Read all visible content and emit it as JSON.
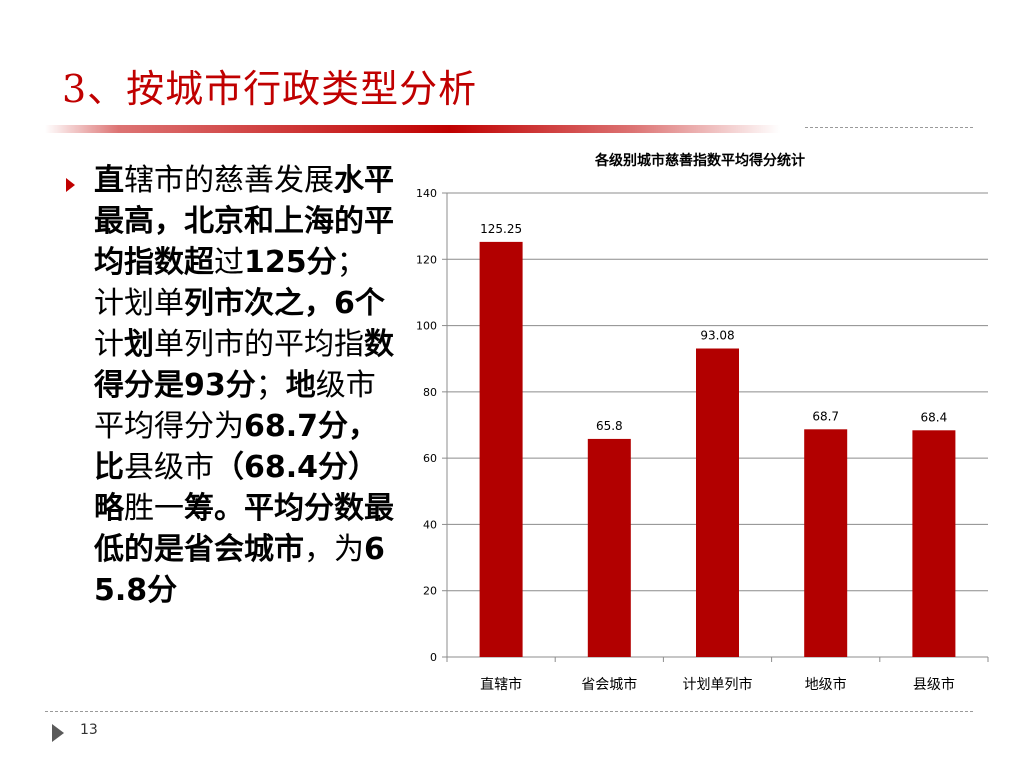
{
  "slide": {
    "title": "3、按城市行政类型分析",
    "page_number": "13"
  },
  "body": {
    "segments": [
      {
        "text": "直",
        "bold": true
      },
      {
        "text": "辖市的慈善发展",
        "bold": false
      },
      {
        "text": "水平最高，北京和上海的平均指数超",
        "bold": true
      },
      {
        "text": "过",
        "bold": false
      },
      {
        "text": "125分",
        "bold": true
      },
      {
        "text": "；计划单",
        "bold": false
      },
      {
        "text": "列市次之，6个",
        "bold": true
      },
      {
        "text": "计",
        "bold": false
      },
      {
        "text": "划",
        "bold": true
      },
      {
        "text": "单列市的平均指",
        "bold": false
      },
      {
        "text": "数得分是93分",
        "bold": true
      },
      {
        "text": "；",
        "bold": false
      },
      {
        "text": "地",
        "bold": true
      },
      {
        "text": "级市平均得分为",
        "bold": false
      },
      {
        "text": "68.7分，比",
        "bold": true
      },
      {
        "text": "县级市",
        "bold": false
      },
      {
        "text": "（68.4分）略",
        "bold": true
      },
      {
        "text": "胜一",
        "bold": false
      },
      {
        "text": "筹。平均分数最低的是省会城市",
        "bold": true
      },
      {
        "text": "，为",
        "bold": false
      },
      {
        "text": "65.8分",
        "bold": true
      }
    ]
  },
  "colors": {
    "bar": "#b20000",
    "title": "#c00000"
  },
  "chart_data": {
    "type": "bar",
    "title": "各级别城市慈善指数平均得分统计",
    "categories": [
      "直辖市",
      "省会城市",
      "计划单列市",
      "地级市",
      "县级市"
    ],
    "values": [
      125.25,
      65.8,
      93.08,
      68.7,
      68.4
    ],
    "data_labels": [
      "125.25",
      "65.8",
      "93.08",
      "68.7",
      "68.4"
    ],
    "xlabel": "",
    "ylabel": "",
    "ylim": [
      0,
      140
    ],
    "yticks": [
      0,
      20,
      40,
      60,
      80,
      100,
      120,
      140
    ],
    "grid": true,
    "legend": "none"
  }
}
